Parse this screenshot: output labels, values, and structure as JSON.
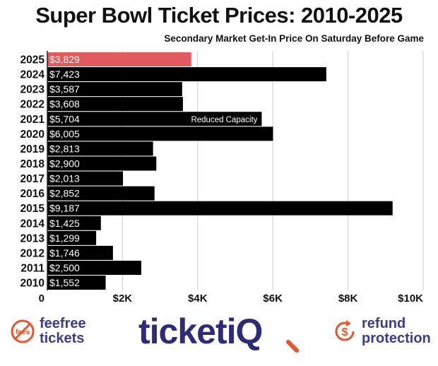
{
  "title": "Super Bowl Ticket Prices: 2010-2025",
  "subtitle": "Secondary Market Get-In Price On Saturday Before Game",
  "chart_data": {
    "type": "bar",
    "orientation": "horizontal",
    "categories": [
      "2025",
      "2024",
      "2023",
      "2022",
      "2021",
      "2020",
      "2019",
      "2018",
      "2017",
      "2016",
      "2015",
      "2014",
      "2013",
      "2012",
      "2011",
      "2010"
    ],
    "values": [
      3829,
      7423,
      3587,
      3608,
      5704,
      6005,
      2813,
      2900,
      2013,
      2852,
      9187,
      1425,
      1299,
      1746,
      2500,
      1552
    ],
    "value_labels": [
      "$3,829",
      "$7,423",
      "$3,587",
      "$3,608",
      "$5,704",
      "$6,005",
      "$2,813",
      "$2,900",
      "$2,013",
      "$2,852",
      "$9,187",
      "$1,425",
      "$1,299",
      "$1,746",
      "$2,500",
      "$1,552"
    ],
    "highlight_category": "2025",
    "xlim": [
      0,
      10000
    ],
    "xticks": [
      0,
      2000,
      4000,
      6000,
      8000,
      10000
    ],
    "xtick_labels": [
      "0",
      "$2K",
      "$4K",
      "$6K",
      "$8K",
      "$10K"
    ],
    "annotations": [
      {
        "category": "2021",
        "text": "Reduced Capacity"
      }
    ],
    "grid": true,
    "colors": {
      "bar": "#000000",
      "highlight": "#e05a5e",
      "grid": "#cccccc",
      "label": "#ffffff"
    }
  },
  "footer": {
    "left_logo_badge": "fees",
    "left_logo_line1": "feefree",
    "left_logo_line2": "tickets",
    "center_logo": "ticketiQ",
    "right_logo_line1": "refund",
    "right_logo_line2": "protection",
    "colors": {
      "brand": "#2e2b7a",
      "accent": "#e8542b",
      "left_text": "#3b3b8f"
    }
  }
}
